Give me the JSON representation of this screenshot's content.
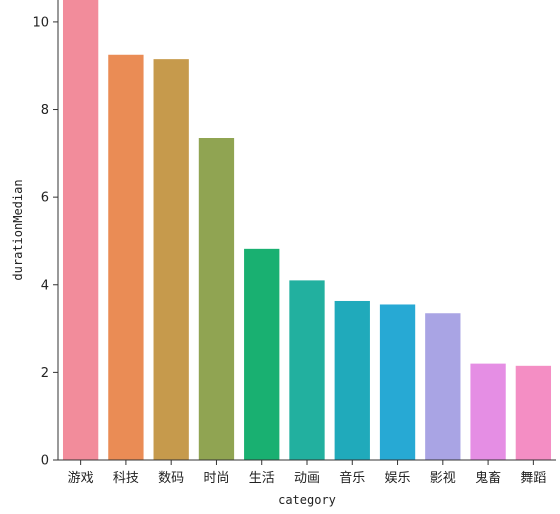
{
  "chart_data": {
    "type": "bar",
    "title": "",
    "xlabel": "category",
    "ylabel": "durationMedian",
    "categories": [
      "游戏",
      "科技",
      "数码",
      "时尚",
      "生活",
      "动画",
      "音乐",
      "娱乐",
      "影视",
      "鬼畜",
      "舞蹈"
    ],
    "values": [
      10.5,
      9.25,
      9.15,
      7.35,
      4.82,
      4.1,
      3.63,
      3.55,
      3.35,
      2.2,
      2.15
    ],
    "colors": [
      "#f28c9b",
      "#ea8c55",
      "#c69a4c",
      "#90a452",
      "#19b071",
      "#22b09f",
      "#20aabb",
      "#27a9d4",
      "#a9a4e4",
      "#e58ee4",
      "#f48ec4"
    ],
    "ylim": [
      0,
      10.5
    ],
    "yticks": [
      0,
      2,
      4,
      6,
      8,
      10
    ],
    "grid": false,
    "legend": "none"
  }
}
